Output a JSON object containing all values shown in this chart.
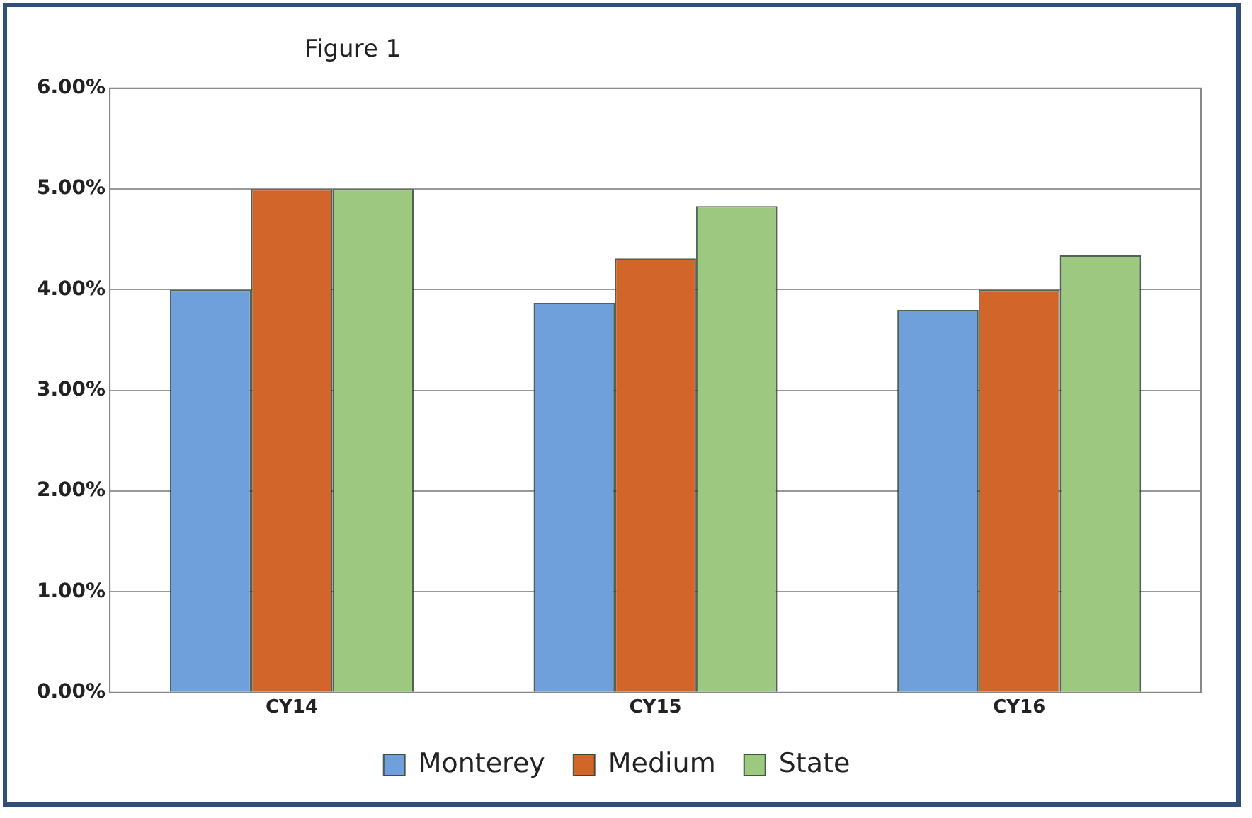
{
  "chart_data": {
    "type": "bar",
    "title": "Figure 1",
    "categories": [
      "CY14",
      "CY15",
      "CY16"
    ],
    "series": [
      {
        "name": "Monterey",
        "color": "#6fa0dc",
        "values": [
          4.0,
          3.87,
          3.8
        ]
      },
      {
        "name": "Medium",
        "color": "#d2652a",
        "values": [
          5.0,
          4.31,
          4.0
        ]
      },
      {
        "name": "State",
        "color": "#9cc97f",
        "values": [
          5.0,
          4.83,
          4.34
        ]
      }
    ],
    "ylim": [
      0,
      6
    ],
    "yticks": [
      {
        "value": 0,
        "label": "0.00%"
      },
      {
        "value": 1,
        "label": "1.00%"
      },
      {
        "value": 2,
        "label": "2.00%"
      },
      {
        "value": 3,
        "label": "3.00%"
      },
      {
        "value": 4,
        "label": "4.00%"
      },
      {
        "value": 5,
        "label": "5.00%"
      },
      {
        "value": 6,
        "label": "6.00%"
      }
    ],
    "grid": "y",
    "legend": "bottom"
  }
}
